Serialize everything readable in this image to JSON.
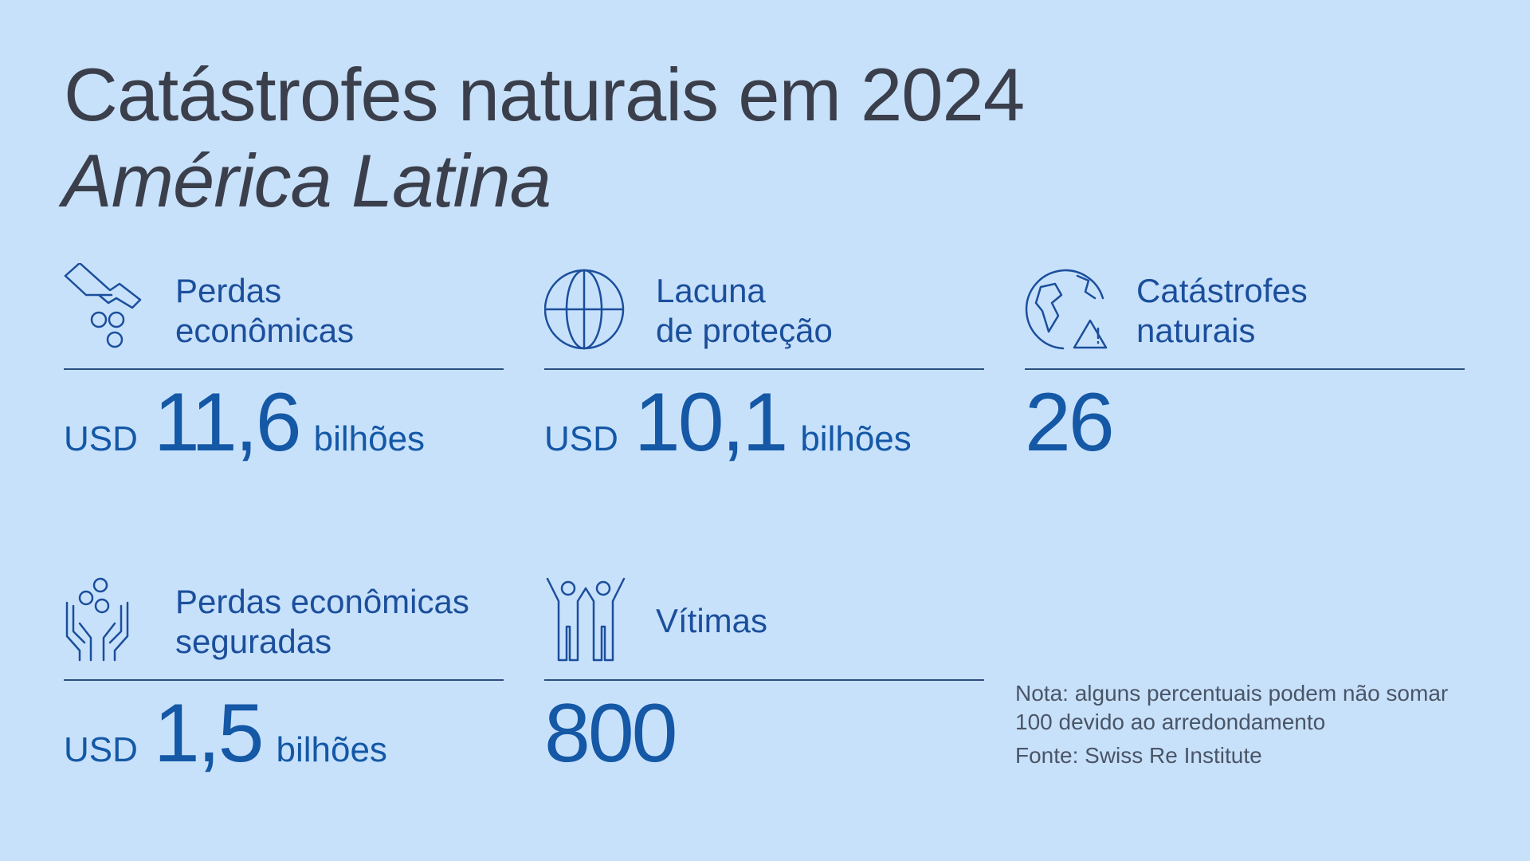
{
  "header": {
    "title": "Catástrofes naturais em 2024",
    "subtitle": "América Latina"
  },
  "stats": [
    {
      "icon": "hand-coins-icon",
      "label": "Perdas\neconômicas",
      "prefix": "USD",
      "value": "11,6",
      "suffix": "bilhões"
    },
    {
      "icon": "globe-icon",
      "label": "Lacuna\nde proteção",
      "prefix": "USD",
      "value": "10,1",
      "suffix": "bilhões"
    },
    {
      "icon": "earth-warning-icon",
      "label": "Catástrofes\nnaturais",
      "prefix": "",
      "value": "26",
      "suffix": ""
    },
    {
      "icon": "hands-coins-icon",
      "label": "Perdas econômicas\nseguradas",
      "prefix": "USD",
      "value": "1,5",
      "suffix": "bilhões"
    },
    {
      "icon": "people-icon",
      "label": "Vítimas",
      "prefix": "",
      "value": "800",
      "suffix": ""
    }
  ],
  "footer": {
    "note": "Nota: alguns percentuais podem não somar\n100 devido ao arredondamento",
    "source": "Fonte: Swiss Re Institute"
  },
  "colors": {
    "background": "#c8e1fb",
    "title": "#3a3f4b",
    "accent": "#1458a6",
    "rule": "#2b4f80"
  }
}
